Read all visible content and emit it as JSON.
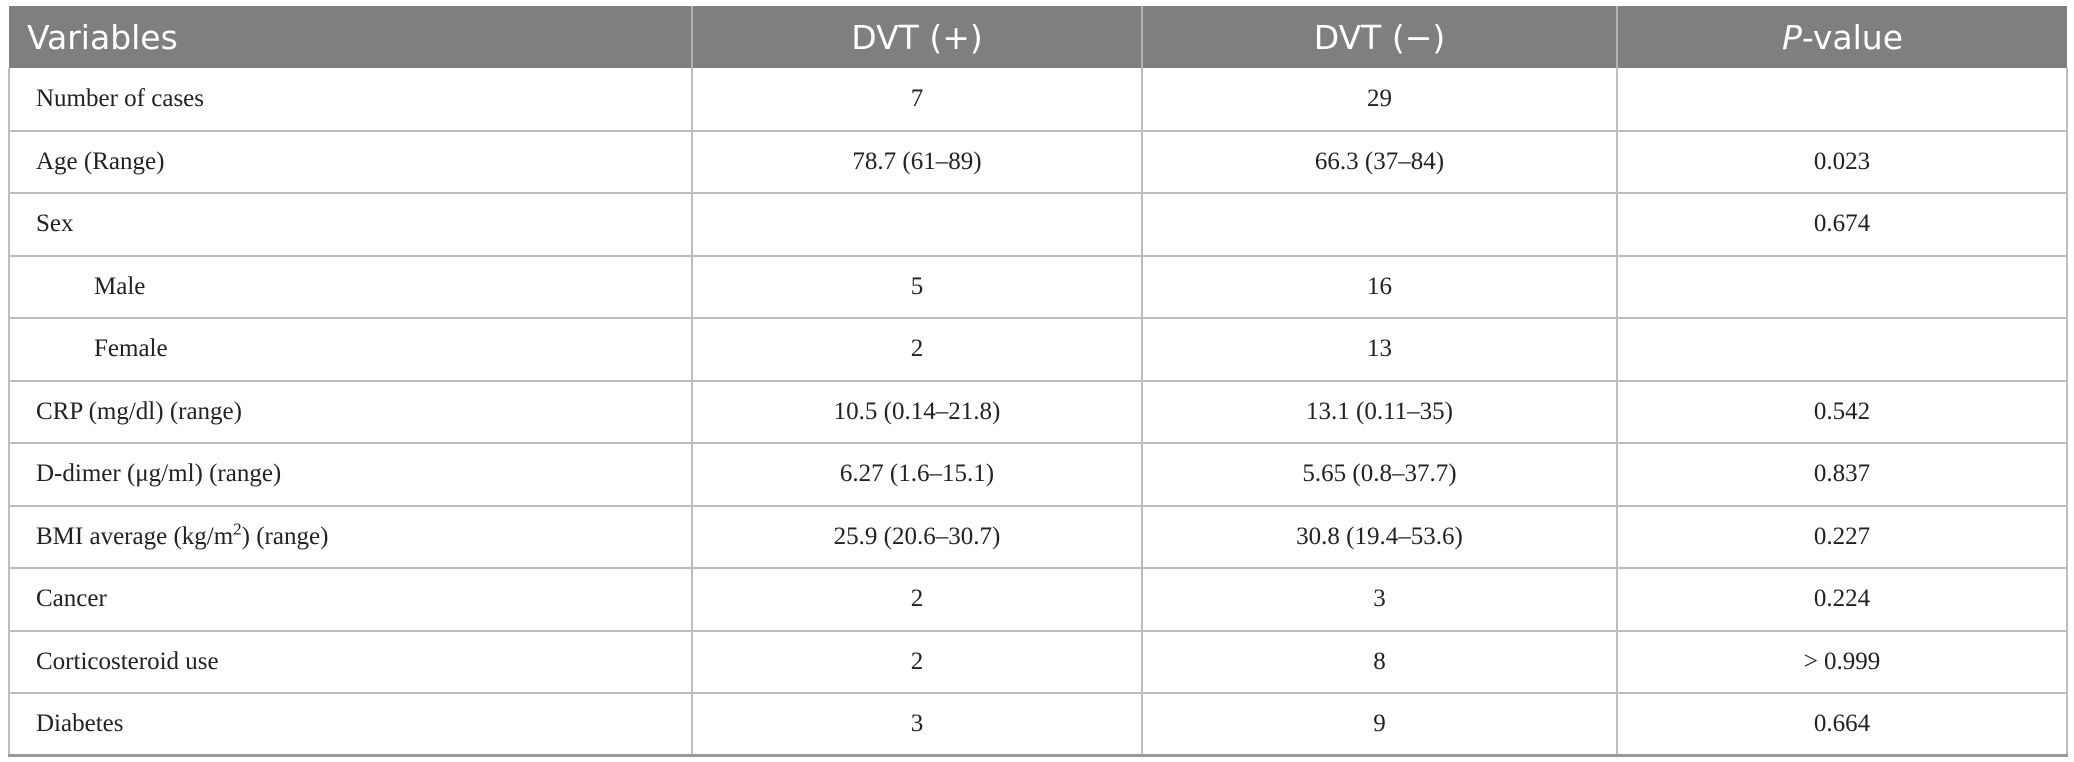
{
  "table": {
    "header": {
      "variables": "Variables",
      "dvt_pos": "DVT (+)",
      "dvt_neg": "DVT (−)",
      "p_italic": "P",
      "p_rest": "-value"
    },
    "rows": [
      {
        "label": "Number of cases",
        "dvt_pos": "7",
        "dvt_neg": "29",
        "p": ""
      },
      {
        "label": "Age (Range)",
        "dvt_pos": "78.7 (61–89)",
        "dvt_neg": "66.3 (37–84)",
        "p": "0.023"
      },
      {
        "label": "Sex",
        "dvt_pos": "",
        "dvt_neg": "",
        "p": "0.674"
      },
      {
        "label": "Male",
        "dvt_pos": "5",
        "dvt_neg": "16",
        "p": ""
      },
      {
        "label": "Female",
        "dvt_pos": "2",
        "dvt_neg": "13",
        "p": ""
      },
      {
        "label": "CRP (mg/dl) (range)",
        "dvt_pos": "10.5 (0.14–21.8)",
        "dvt_neg": "13.1 (0.11–35)",
        "p": "0.542"
      },
      {
        "label": "D-dimer (μg/ml) (range)",
        "dvt_pos": "6.27 (1.6–15.1)",
        "dvt_neg": "5.65 (0.8–37.7)",
        "p": "0.837"
      },
      {
        "label_pre": "BMI average (kg/m",
        "label_sup": "2",
        "label_post": ") (range)",
        "dvt_pos": "25.9 (20.6–30.7)",
        "dvt_neg": "30.8 (19.4–53.6)",
        "p": "0.227"
      },
      {
        "label": "Cancer",
        "dvt_pos": "2",
        "dvt_neg": "3",
        "p": "0.224"
      },
      {
        "label": "Corticosteroid use",
        "dvt_pos": "2",
        "dvt_neg": "8",
        "p": "> 0.999"
      },
      {
        "label": "Diabetes",
        "dvt_pos": "3",
        "dvt_neg": "9",
        "p": "0.664"
      }
    ]
  }
}
